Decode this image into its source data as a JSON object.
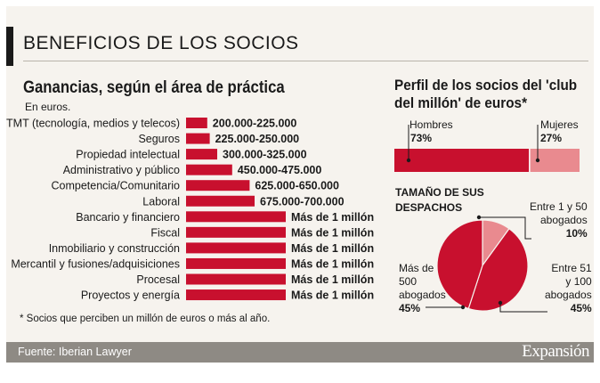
{
  "header": {
    "title": "BENEFICIOS DE LOS SOCIOS"
  },
  "chart_data": [
    {
      "type": "bar",
      "title": "Ganancias, según el área de práctica",
      "subtitle": "En euros.",
      "categories": [
        "TMT (tecnología, medios y telecos)",
        "Seguros",
        "Propiedad intelectual",
        "Administrativo y público",
        "Competencia/Comunitario",
        "Laboral",
        "Bancario y financiero",
        "Fiscal",
        "Inmobiliario y construcción",
        "Mercantil y fusiones/adquisiciones",
        "Procesal",
        "Proyectos y energía"
      ],
      "value_labels": [
        "200.000-225.000",
        "225.000-250.000",
        "300.000-325.000",
        "450.000-475.000",
        "625.000-650.000",
        "675.000-700.000",
        "Más de 1 millón",
        "Más de 1 millón",
        "Más de 1 millón",
        "Más de 1 millón",
        "Más de 1 millón",
        "Más de 1 millón"
      ],
      "values": [
        212500,
        237500,
        312500,
        462500,
        637500,
        687500,
        1000000,
        1000000,
        1000000,
        1000000,
        1000000,
        1000000
      ],
      "note": "* Socios que perciben un millón de euros o más al año.",
      "colors": {
        "bar": "#c8102e"
      }
    },
    {
      "type": "bar",
      "title": "Perfil de los socios del 'club del millón' de euros*",
      "stacked": true,
      "series": [
        {
          "name": "Hombres",
          "value": 73,
          "label": "73%",
          "color": "#c8102e"
        },
        {
          "name": "Mujeres",
          "value": 27,
          "label": "27%",
          "color": "#e98a8f"
        }
      ]
    },
    {
      "type": "pie",
      "title": "TAMAÑO DE SUS DESPACHOS",
      "slices": [
        {
          "name": "Entre 1 y 50 abogados",
          "value": 10,
          "label": "10%",
          "color": "#e98a8f"
        },
        {
          "name": "Entre 51 y 100 abogados",
          "value": 45,
          "label": "45%",
          "color": "#c8102e"
        },
        {
          "name": "Más de 500 abogados",
          "value": 45,
          "label": "45%",
          "color": "#c8102e"
        }
      ]
    }
  ],
  "labels": {
    "hombres": "Hombres",
    "hombres_pct": "73%",
    "mujeres": "Mujeres",
    "mujeres_pct": "27%",
    "despachos_title": [
      "TAMAÑO DE SUS",
      "DESPACHOS"
    ],
    "small": [
      "Entre 1 y 50",
      "abogados"
    ],
    "small_pct": "10%",
    "mid": [
      "Entre 51",
      "y 100",
      "abogados"
    ],
    "mid_pct": "45%",
    "big": [
      "Más de",
      "500",
      "abogados"
    ],
    "big_pct": "45%"
  },
  "footer": {
    "source": "Fuente: Iberian Lawyer",
    "brand": "Expansión"
  }
}
